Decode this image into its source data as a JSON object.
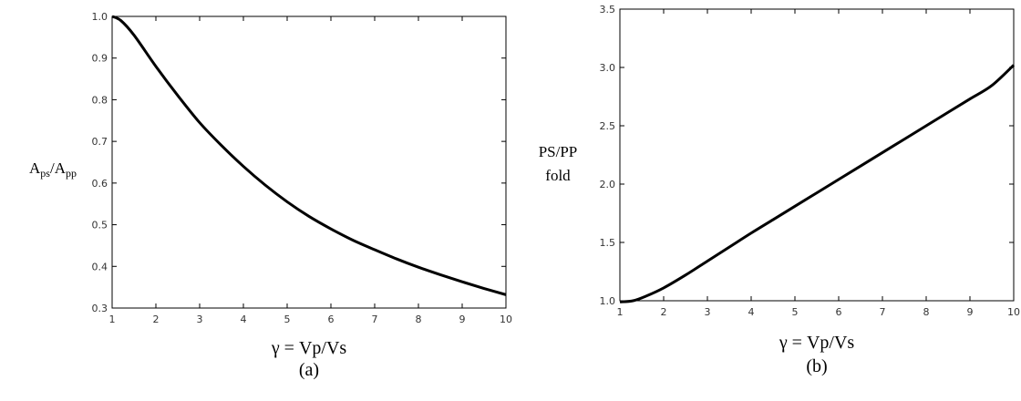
{
  "chart_data": [
    {
      "type": "line",
      "panel_label": "(a)",
      "xlabel": "γ = Vp/Vs",
      "ylabel": {
        "main1": "A",
        "sub1": "ps",
        "slash": "/",
        "main2": "A",
        "sub2": "pp"
      },
      "xlim": [
        1,
        10
      ],
      "ylim": [
        0.3,
        1.0
      ],
      "xticks": [
        "1",
        "2",
        "3",
        "4",
        "5",
        "6",
        "7",
        "8",
        "9",
        "10"
      ],
      "yticks": [
        "0.3",
        "0.4",
        "0.5",
        "0.6",
        "0.7",
        "0.8",
        "0.9",
        "1.0"
      ],
      "grid": false,
      "series": [
        {
          "color": "#000000",
          "x": [
            1,
            1.2,
            1.5,
            2,
            2.5,
            3,
            3.5,
            4,
            4.5,
            5,
            5.5,
            6,
            6.5,
            7,
            7.5,
            8,
            8.5,
            9,
            9.5,
            10
          ],
          "y": [
            1.0,
            0.99,
            0.955,
            0.88,
            0.81,
            0.745,
            0.69,
            0.64,
            0.595,
            0.555,
            0.52,
            0.49,
            0.463,
            0.44,
            0.418,
            0.398,
            0.38,
            0.363,
            0.347,
            0.332
          ]
        }
      ]
    },
    {
      "type": "line",
      "panel_label": "(b)",
      "xlabel": "γ = Vp/Vs",
      "ylabel": {
        "line1": "PS/PP",
        "line2": "fold"
      },
      "xlim": [
        1,
        10
      ],
      "ylim": [
        1.0,
        3.5
      ],
      "xticks": [
        "1",
        "2",
        "3",
        "4",
        "5",
        "6",
        "7",
        "8",
        "9",
        "10"
      ],
      "yticks": [
        "1.0",
        "1.5",
        "2.0",
        "2.5",
        "3.0",
        "3.5"
      ],
      "grid": false,
      "series": [
        {
          "color": "#000000",
          "x": [
            1,
            1.3,
            1.6,
            2,
            2.5,
            3,
            3.5,
            4,
            4.5,
            5,
            5.5,
            6,
            6.5,
            7,
            7.5,
            8,
            8.5,
            9,
            9.5,
            10
          ],
          "y": [
            0.99,
            1.0,
            1.04,
            1.11,
            1.22,
            1.34,
            1.46,
            1.58,
            1.695,
            1.81,
            1.925,
            2.04,
            2.155,
            2.27,
            2.385,
            2.5,
            2.615,
            2.73,
            2.845,
            3.02
          ]
        }
      ]
    }
  ]
}
